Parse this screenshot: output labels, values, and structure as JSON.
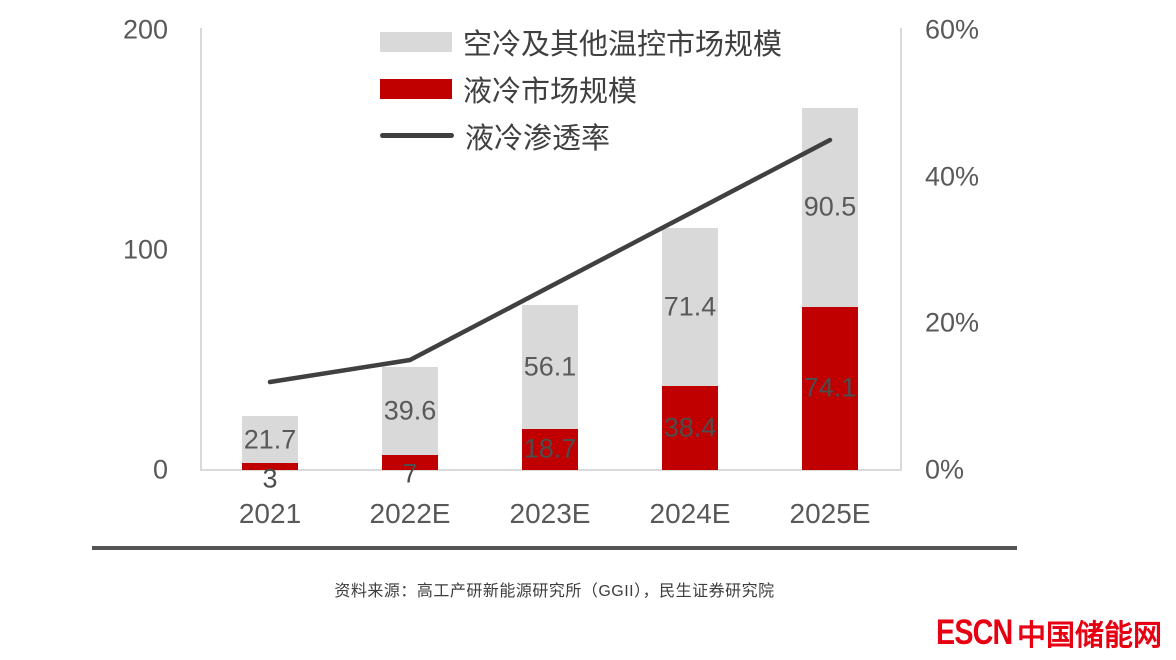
{
  "chart_data": {
    "type": "bar",
    "subtype": "stacked-bars-with-line",
    "categories": [
      "2021",
      "2022E",
      "2023E",
      "2024E",
      "2025E"
    ],
    "series": [
      {
        "name": "液冷市场规模",
        "kind": "bar",
        "stack": "bottom",
        "color": "#c00000",
        "values": [
          3,
          7,
          18.7,
          38.4,
          74.1
        ],
        "labels": [
          "3",
          "7",
          "18.7",
          "38.4",
          "74.1"
        ]
      },
      {
        "name": "空冷及其他温控市场规模",
        "kind": "bar",
        "stack": "top",
        "color": "#d9d9d9",
        "values": [
          21.7,
          39.6,
          56.1,
          71.4,
          90.5
        ],
        "labels": [
          "21.7",
          "39.6",
          "56.1",
          "71.4",
          "90.5"
        ]
      },
      {
        "name": "液冷渗透率",
        "kind": "line",
        "axis": "right",
        "color": "#404040",
        "values": [
          12,
          15,
          25,
          35,
          45
        ],
        "unit": "%"
      }
    ],
    "left_axis": {
      "min": 0,
      "max": 200,
      "ticks": [
        0,
        100,
        200
      ]
    },
    "right_axis": {
      "min": 0,
      "max": 60,
      "ticks": [
        0,
        20,
        40,
        60
      ],
      "tick_labels": [
        "0%",
        "20%",
        "40%",
        "60%"
      ]
    },
    "legend": [
      {
        "label": "空冷及其他温控市场规模",
        "swatch": "gray-rect"
      },
      {
        "label": "液冷市场规模",
        "swatch": "red-rect"
      },
      {
        "label": "液冷渗透率",
        "swatch": "dark-line"
      }
    ],
    "grid": false,
    "legend_position": "top-left-inside"
  },
  "footer": {
    "source": "资料来源：高工产研新能源研究所（GGII），民生证券研究院",
    "logo_escn": "ESCN",
    "logo_cn": "中国储能网"
  },
  "colors": {
    "bar_gray": "#d9d9d9",
    "bar_red": "#c00000",
    "line_dark": "#404040",
    "axis_text": "#595959",
    "plot_border": "#d9d9d9",
    "divider": "#545454",
    "logo_red": "#e60012"
  }
}
